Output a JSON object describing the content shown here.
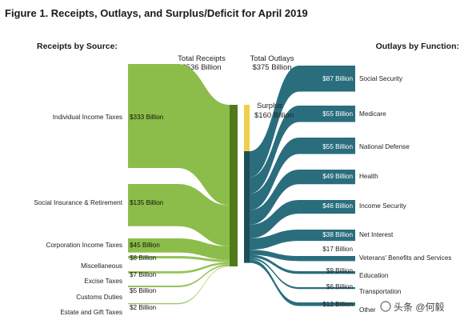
{
  "figure": {
    "title": "Figure 1. Receipts, Outlays, and Surplus/Deficit for April 2019",
    "receipts_heading": "Receipts by Source:",
    "outlays_heading": "Outlays by Function:",
    "total_receipts_label": "Total Receipts",
    "total_receipts_value": "$536 Billion",
    "total_outlays_label": "Total Outlays",
    "total_outlays_value": "$375 Billion",
    "surplus_label": "Surplus",
    "surplus_value": "$160 Billion"
  },
  "colors": {
    "receipts": "#8cbd4a",
    "receipts_dark": "#4f7a1c",
    "outlays": "#2a6e7d",
    "outlays_dark": "#1c4f5a",
    "surplus": "#f0d04a"
  },
  "chart_data": {
    "type": "sankey",
    "units": "Billion dollars",
    "receipts": [
      {
        "name": "Individual Income Taxes",
        "value": 333,
        "label": "$333 Billion"
      },
      {
        "name": "Social Insurance & Retirement",
        "value": 135,
        "label": "$135 Billion"
      },
      {
        "name": "Corporation Income Taxes",
        "value": 45,
        "label": "$45 Billion"
      },
      {
        "name": "Miscellaneous",
        "value": 8,
        "label": "$8 Billion"
      },
      {
        "name": "Excise Taxes",
        "value": 7,
        "label": "$7 Billion"
      },
      {
        "name": "Customs Duties",
        "value": 5,
        "label": "$5 Billion"
      },
      {
        "name": "Estate and Gift Taxes",
        "value": 2,
        "label": "$2 Billion"
      }
    ],
    "outlays": [
      {
        "name": "Social Security",
        "value": 87,
        "label": "$87 Billion"
      },
      {
        "name": "Medicare",
        "value": 55,
        "label": "$55 Billion"
      },
      {
        "name": "National Defense",
        "value": 55,
        "label": "$55 Billion"
      },
      {
        "name": "Health",
        "value": 49,
        "label": "$49 Billion"
      },
      {
        "name": "Income Security",
        "value": 46,
        "label": "$46 Billion"
      },
      {
        "name": "Net Interest",
        "value": 38,
        "label": "$38 Billion"
      },
      {
        "name": "Veterans' Benefits and Services",
        "value": 17,
        "label": "$17 Billion"
      },
      {
        "name": "Education",
        "value": 9,
        "label": "$9 Billion"
      },
      {
        "name": "Transportation",
        "value": 6,
        "label": "$6 Billion"
      },
      {
        "name": "Other",
        "value": 12,
        "label": "$12 Billion"
      }
    ],
    "totals": {
      "receipts": 536,
      "outlays": 375,
      "surplus": 160
    }
  },
  "watermark": {
    "text": "头条 @何毅"
  }
}
